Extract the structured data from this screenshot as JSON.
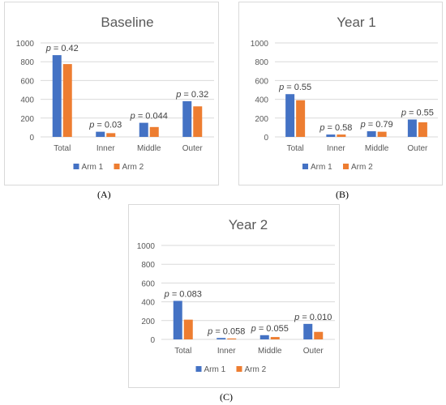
{
  "colors": {
    "arm1": "#4472C4",
    "arm2": "#ED7D31",
    "grid": "#d9d9d9",
    "text": "#595959"
  },
  "panel_labels": [
    "(A)",
    "(B)",
    "(C)"
  ],
  "chart_data": [
    {
      "type": "bar",
      "title": "Baseline",
      "categories": [
        "Total",
        "Inner",
        "Middle",
        "Outer"
      ],
      "series": [
        {
          "name": "Arm 1",
          "values": [
            870,
            55,
            150,
            380
          ]
        },
        {
          "name": "Arm 2",
          "values": [
            775,
            40,
            105,
            325
          ]
        }
      ],
      "annotations": [
        "p = 0.42",
        "p = 0.03",
        "p = 0.044",
        "p = 0.32"
      ],
      "ylim": [
        0,
        1000
      ],
      "yticks": [
        0,
        200,
        400,
        600,
        800,
        1000
      ],
      "grid": true,
      "legend": "bottom"
    },
    {
      "type": "bar",
      "title": "Year 1",
      "categories": [
        "Total",
        "Inner",
        "Middle",
        "Outer"
      ],
      "series": [
        {
          "name": "Arm 1",
          "values": [
            455,
            25,
            60,
            185
          ]
        },
        {
          "name": "Arm 2",
          "values": [
            390,
            25,
            55,
            155
          ]
        }
      ],
      "annotations": [
        "p = 0.55",
        "p = 0.58",
        "p = 0.79",
        "p = 0.55"
      ],
      "ylim": [
        0,
        1000
      ],
      "yticks": [
        0,
        200,
        400,
        600,
        800,
        1000
      ],
      "grid": true,
      "legend": "bottom"
    },
    {
      "type": "bar",
      "title": "Year 2",
      "categories": [
        "Total",
        "Inner",
        "Middle",
        "Outer"
      ],
      "series": [
        {
          "name": "Arm 1",
          "values": [
            410,
            15,
            45,
            165
          ]
        },
        {
          "name": "Arm 2",
          "values": [
            210,
            10,
            25,
            80
          ]
        }
      ],
      "annotations": [
        "p = 0.083",
        "p = 0.058",
        "p = 0.055",
        "p = 0.010"
      ],
      "ylim": [
        0,
        1000
      ],
      "yticks": [
        0,
        200,
        400,
        600,
        800,
        1000
      ],
      "grid": true,
      "legend": "bottom"
    }
  ]
}
